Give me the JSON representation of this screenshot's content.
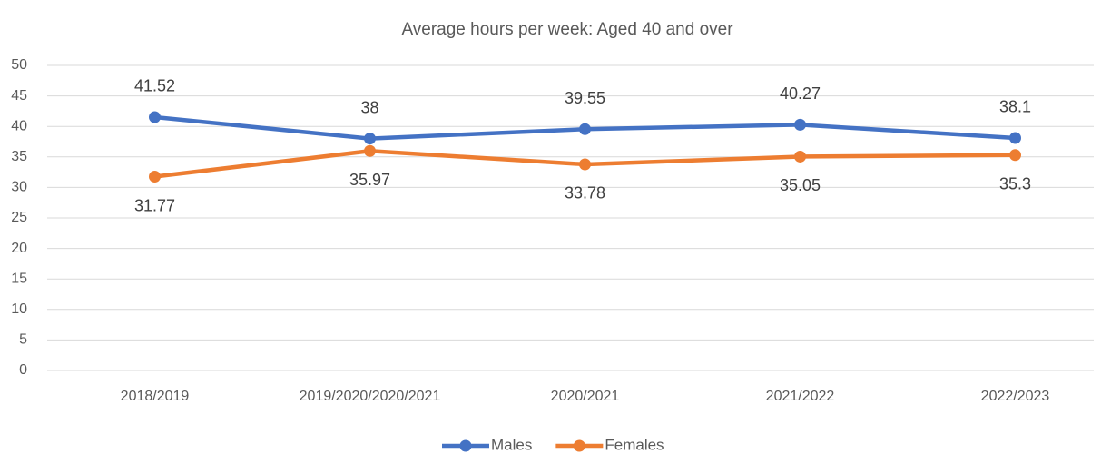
{
  "chart_data": {
    "type": "line",
    "title": "Average hours per week: Aged 40 and over",
    "categories": [
      "2018/2019",
      "2019/2020/2020/2021",
      "2020/2021",
      "2021/2022",
      "2022/2023"
    ],
    "series": [
      {
        "name": "Males",
        "color": "#4472c4",
        "values": [
          41.52,
          38,
          39.55,
          40.27,
          38.1
        ]
      },
      {
        "name": "Females",
        "color": "#ed7d31",
        "values": [
          31.77,
          35.97,
          33.78,
          35.05,
          35.3
        ]
      }
    ],
    "ylim": [
      0,
      50
    ],
    "yticks": [
      0,
      5,
      10,
      15,
      20,
      25,
      30,
      35,
      40,
      45,
      50
    ],
    "grid": true,
    "legend": "bottom"
  }
}
